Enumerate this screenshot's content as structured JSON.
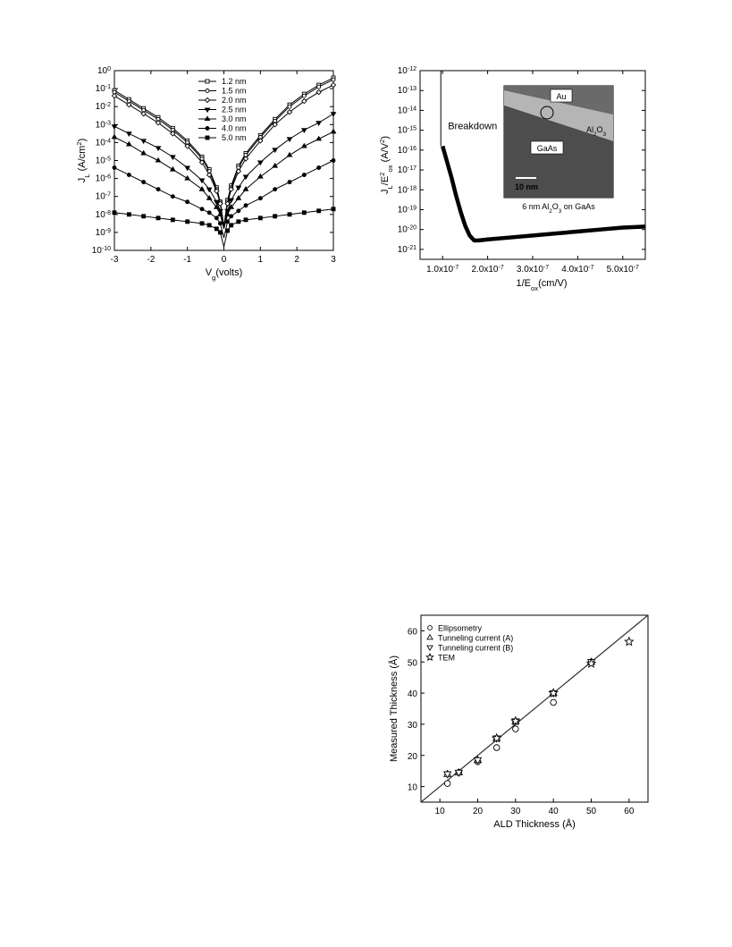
{
  "chart_data": [
    {
      "type": "line",
      "title": "",
      "xlabel": "V",
      "xlabel_sub": "g",
      "xlabel_tail": "(volts)",
      "ylabel": "J",
      "ylabel_sub": "L",
      "ylabel_tail": " (A/cm",
      "ylabel_sup": "2",
      "ylabel_end": ")",
      "xlim": [
        -3,
        3
      ],
      "ylim_log10": [
        -10,
        0
      ],
      "yscale": "log",
      "x_ticks": [
        "-3",
        "-2",
        "-1",
        "0",
        "1",
        "2",
        "3"
      ],
      "y_tick_exponents": [
        "0",
        "-1",
        "-2",
        "-3",
        "-4",
        "-5",
        "-6",
        "-7",
        "-8",
        "-9",
        "-10"
      ],
      "y_tick_base": "10",
      "legend_position": "top-center",
      "x": [
        -3,
        -2.6,
        -2.2,
        -1.8,
        -1.4,
        -1.0,
        -0.6,
        -0.4,
        -0.2,
        -0.1,
        0,
        0.1,
        0.2,
        0.4,
        0.6,
        1.0,
        1.4,
        1.8,
        2.2,
        2.6,
        3
      ],
      "series": [
        {
          "name": "1.2 nm",
          "marker": "open-square",
          "log10_values": [
            -1.1,
            -1.6,
            -2.1,
            -2.6,
            -3.2,
            -3.9,
            -4.8,
            -5.5,
            -6.5,
            -7.3,
            -8.7,
            -7.2,
            -6.4,
            -5.3,
            -4.6,
            -3.6,
            -2.7,
            -1.9,
            -1.3,
            -0.8,
            -0.4
          ]
        },
        {
          "name": "1.5 nm",
          "marker": "open-circle",
          "log10_values": [
            -1.2,
            -1.7,
            -2.2,
            -2.7,
            -3.3,
            -4.0,
            -4.9,
            -5.6,
            -6.6,
            -7.3,
            -8.7,
            -7.3,
            -6.5,
            -5.4,
            -4.7,
            -3.7,
            -2.8,
            -2.0,
            -1.4,
            -0.9,
            -0.5
          ]
        },
        {
          "name": "2.0 nm",
          "marker": "open-diamond",
          "log10_values": [
            -1.4,
            -1.9,
            -2.4,
            -2.9,
            -3.5,
            -4.2,
            -5.1,
            -5.8,
            -6.7,
            -7.4,
            -8.7,
            -7.4,
            -6.6,
            -5.6,
            -4.9,
            -3.9,
            -3.0,
            -2.3,
            -1.7,
            -1.2,
            -0.8
          ]
        },
        {
          "name": "2.5 nm",
          "marker": "filled-triangle-down",
          "log10_values": [
            -3.1,
            -3.5,
            -3.9,
            -4.3,
            -4.8,
            -5.4,
            -6.1,
            -6.6,
            -7.3,
            -7.8,
            -8.7,
            -7.8,
            -7.2,
            -6.5,
            -5.9,
            -5.1,
            -4.4,
            -3.8,
            -3.3,
            -2.9,
            -2.4
          ]
        },
        {
          "name": "3.0 nm",
          "marker": "filled-triangle-up",
          "log10_values": [
            -3.7,
            -4.1,
            -4.6,
            -5.0,
            -5.5,
            -6.0,
            -6.6,
            -7.1,
            -7.6,
            -8.0,
            -8.8,
            -8.0,
            -7.6,
            -7.1,
            -6.6,
            -5.9,
            -5.3,
            -4.7,
            -4.2,
            -3.8,
            -3.4
          ]
        },
        {
          "name": "4.0 nm",
          "marker": "filled-circle",
          "log10_values": [
            -5.4,
            -5.8,
            -6.2,
            -6.6,
            -7.0,
            -7.3,
            -7.7,
            -7.9,
            -8.2,
            -8.5,
            -9.3,
            -8.4,
            -8.1,
            -7.8,
            -7.5,
            -7.1,
            -6.6,
            -6.2,
            -5.8,
            -5.4,
            -5.0
          ]
        },
        {
          "name": "5.0 nm",
          "marker": "filled-square",
          "log10_values": [
            -7.9,
            -8.0,
            -8.1,
            -8.2,
            -8.3,
            -8.4,
            -8.5,
            -8.6,
            -8.8,
            -9.0,
            -9.8,
            -8.9,
            -8.6,
            -8.4,
            -8.3,
            -8.2,
            -8.1,
            -8.0,
            -7.9,
            -7.8,
            -7.7
          ]
        }
      ]
    },
    {
      "type": "line",
      "title": "",
      "xlabel": "1/E",
      "xlabel_sub": "ox",
      "xlabel_tail": "(cm/V)",
      "ylabel": "J",
      "ylabel_sub": "L",
      "ylabel_mid": "/E",
      "ylabel_sup": "2",
      "ylabel_sub2": "ox",
      "ylabel_tail": " (A/V",
      "ylabel_sup2": "2",
      "ylabel_end": ")",
      "xlim": [
        5e-08,
        5.5e-07
      ],
      "ylim_log10": [
        -21.5,
        -12
      ],
      "yscale": "log",
      "x_ticks": [
        {
          "value": 1e-07,
          "label": "1.0x10",
          "exp": "-7"
        },
        {
          "value": 2e-07,
          "label": "2.0x10",
          "exp": "-7"
        },
        {
          "value": 3e-07,
          "label": "3.0x10",
          "exp": "-7"
        },
        {
          "value": 4e-07,
          "label": "4.0x10",
          "exp": "-7"
        },
        {
          "value": 5e-07,
          "label": "5.0x10",
          "exp": "-7"
        }
      ],
      "y_tick_base": "10",
      "y_tick_exponents": [
        "-12",
        "-13",
        "-14",
        "-15",
        "-16",
        "-17",
        "-18",
        "-19",
        "-20",
        "-21"
      ],
      "annotations": {
        "breakdown": "Breakdown",
        "inset_caption_a": "6 nm Al",
        "inset_caption_sub1": "2",
        "inset_caption_b": "O",
        "inset_caption_sub2": "3",
        "inset_caption_c": " on GaAs",
        "inset_au": "Au",
        "inset_oxide": "Al",
        "inset_oxide_sub1": "2",
        "inset_oxide_o": "O",
        "inset_oxide_sub2": "3",
        "inset_gaas": "GaAs",
        "inset_scale": "10 nm"
      },
      "breakdown_x": 1e-07,
      "series": [
        {
          "name": "",
          "x": [
            1e-07,
            1.1e-07,
            1.2e-07,
            1.3e-07,
            1.4e-07,
            1.5e-07,
            1.6e-07,
            1.7e-07,
            1.8e-07,
            2e-07,
            2.5e-07,
            3e-07,
            3.5e-07,
            4e-07,
            4.5e-07,
            5e-07,
            5.5e-07
          ],
          "log10_values": [
            -15.8,
            -16.6,
            -17.4,
            -18.3,
            -19.1,
            -19.8,
            -20.3,
            -20.55,
            -20.55,
            -20.5,
            -20.4,
            -20.3,
            -20.2,
            -20.1,
            -20.0,
            -19.9,
            -19.85
          ]
        }
      ]
    },
    {
      "type": "scatter",
      "title": "",
      "xlabel": "ALD Thickness (Å)",
      "ylabel": "Measured Thickness (Å)",
      "xlim": [
        5,
        65
      ],
      "ylim": [
        5,
        65
      ],
      "x_ticks": [
        "10",
        "20",
        "30",
        "40",
        "50",
        "60"
      ],
      "y_ticks": [
        "10",
        "20",
        "30",
        "40",
        "50",
        "60"
      ],
      "legend_position": "top-left",
      "fit_line": {
        "x": [
          5,
          65
        ],
        "y": [
          5,
          65
        ]
      },
      "series": [
        {
          "name": "Ellipsometry",
          "marker": "circle",
          "x": [
            12,
            15,
            20,
            25,
            30,
            40,
            50
          ],
          "y": [
            11,
            14.5,
            18,
            22.5,
            28.5,
            37,
            50
          ]
        },
        {
          "name": "Tunneling current (A)",
          "marker": "triangle-up",
          "x": [
            12,
            15,
            20,
            25,
            30,
            40,
            50
          ],
          "y": [
            14,
            14.5,
            18.5,
            25.5,
            31,
            40,
            50
          ]
        },
        {
          "name": "Tunneling current (B)",
          "marker": "triangle-down",
          "x": [
            12,
            15,
            20,
            25,
            30,
            40,
            50
          ],
          "y": [
            14,
            14.5,
            18.5,
            25.5,
            31,
            40,
            50
          ]
        },
        {
          "name": "TEM",
          "marker": "star",
          "x": [
            25,
            30,
            40,
            50,
            60
          ],
          "y": [
            25.5,
            31,
            40,
            49.5,
            56.5
          ]
        }
      ]
    }
  ]
}
